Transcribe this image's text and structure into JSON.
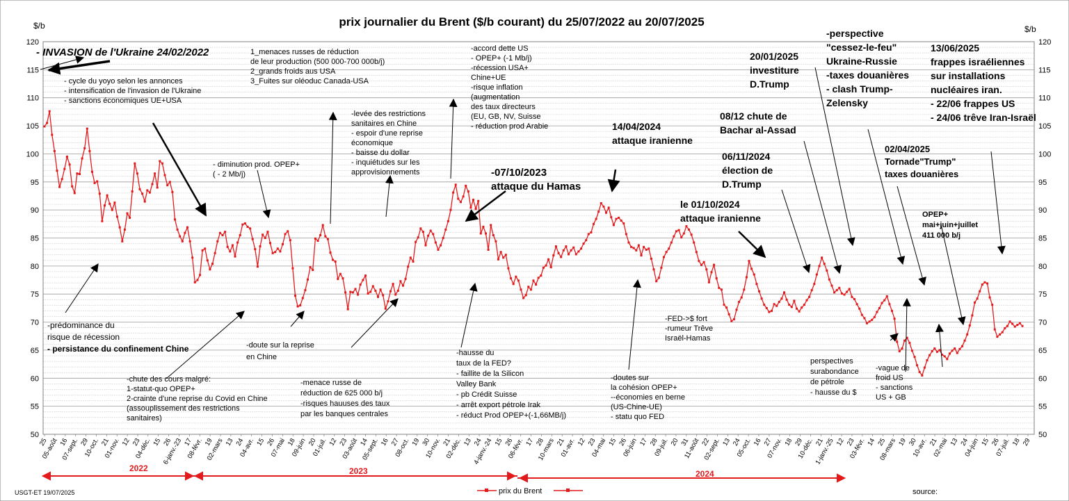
{
  "chart_data": {
    "type": "line",
    "title": "prix  journalier du  Brent ($/b courant) du 25/07/2022 au  20/07/2025",
    "ylabel_left": "$/b",
    "ylabel_right": "$/b",
    "ylim": [
      50,
      120
    ],
    "yticks": [
      50,
      55,
      60,
      65,
      70,
      75,
      80,
      85,
      90,
      95,
      100,
      105,
      110,
      115,
      120
    ],
    "grid": true,
    "x_tick_labels": [
      "25",
      "05-août",
      "16",
      "07-sept.",
      "29",
      "10-oct.",
      "21",
      "01-nov.",
      "12",
      "23",
      "04-déc.",
      "15",
      "26",
      "6-janv.-23",
      "17",
      "08-févr.",
      "19",
      "02-mars",
      "13",
      "24",
      "04-avr.",
      "15",
      "26",
      "07-mai",
      "18",
      "09-juin",
      "20",
      "01-juil.",
      "12",
      "23",
      "03-août",
      "14",
      "05-sept.",
      "16",
      "27",
      "08-oct.",
      "19",
      "30",
      "10-nov.",
      "21",
      "02-déc.",
      "13",
      "24",
      "4-janv.-24",
      "15",
      "26",
      "06-févr.",
      "17",
      "28",
      "10-mars",
      "21",
      "01-avr.",
      "12",
      "23",
      "04-mai",
      "15",
      "26",
      "06-juin",
      "17",
      "28",
      "09-juil.",
      "20",
      "31",
      "11-août",
      "22",
      "02-sept.",
      "13",
      "24",
      "05-oct.",
      "16",
      "27",
      "07-nov.",
      "18",
      "29",
      "10-déc.",
      "21",
      "1-janv.-25",
      "12",
      "23",
      "03-févr.",
      "14",
      "25",
      "08-mars",
      "19",
      "30",
      "10-avr.",
      "21",
      "02-mai",
      "13",
      "24",
      "04-juin",
      "15",
      "26",
      "07-juil.",
      "18",
      "29"
    ],
    "series": [
      {
        "name": "prix du Brent",
        "color": "#e31a1c",
        "values": [
          104.9,
          105.5,
          107.6,
          103.4,
          100.5,
          97,
          94.1,
          95.5,
          97.3,
          99.5,
          98.1,
          94.2,
          93,
          96.5,
          96.4,
          99.2,
          101,
          104.5,
          100.5,
          96.8,
          94.8,
          95.1,
          92.9,
          88,
          90.8,
          92.6,
          91.1,
          90,
          91.3,
          88.8,
          86.9,
          84.4,
          86.5,
          89.4,
          88.6,
          93.3,
          98.3,
          96.5,
          93.7,
          92.9,
          91.5,
          93.5,
          93.1,
          94.6,
          96.5,
          94,
          98.7,
          98.3,
          96.2,
          94.4,
          95,
          93.2,
          88.3,
          86.5,
          85.3,
          84.4,
          85.9,
          86.9,
          84.4,
          81.5,
          77.1,
          77.5,
          78.4,
          82.8,
          83.1,
          81,
          79.4,
          80.4,
          82.3,
          84.4,
          85.9,
          85.5,
          86.1,
          83.4,
          82.6,
          83.7,
          81.7,
          84.2,
          85.5,
          87.4,
          87.6,
          87,
          86.7,
          84.8,
          83,
          79.9,
          83.5,
          85.6,
          85,
          86.1,
          84.1,
          82.3,
          82.5,
          83.1,
          82.6,
          83.9,
          85.7,
          86.2,
          84.6,
          79.6,
          74.7,
          72.8,
          73,
          74.3,
          75.7,
          77.6,
          79.8,
          79.3,
          84.9,
          84.5,
          85.5,
          87.3,
          85.3,
          84.8,
          82.4,
          81.1,
          80.8,
          77.7,
          78.6,
          77.8,
          75.3,
          72.3,
          75.4,
          75.3,
          75.9,
          74.9,
          76.7,
          77.5,
          78.3,
          75.1,
          75.4,
          76.4,
          75.6,
          74.5,
          75.8,
          74.8,
          72.4,
          73.7,
          75.5,
          76.8,
          74.9,
          75.6,
          77.3,
          76.5,
          77.7,
          79.9,
          81.5,
          80.8,
          84.3,
          85.1,
          86.7,
          86.1,
          83.7,
          85.4,
          86.3,
          85.7,
          84.2,
          82.9,
          83.7,
          85,
          86.5,
          88,
          90,
          93.1,
          94.5,
          92,
          91.4,
          92.4,
          94.3,
          93.3,
          90.4,
          91.8,
          90.2,
          91.6,
          85.8,
          87,
          85.8,
          82.9,
          87.3,
          85.5,
          84.4,
          81.2,
          82.5,
          81.5,
          82,
          79.6,
          77.8,
          76.8,
          78.1,
          77.4,
          75.8,
          74.3,
          74.8,
          76.3,
          75.8,
          77.4,
          76.7,
          77.9,
          78.3,
          79.7,
          80.1,
          81.2,
          79.8,
          81.9,
          83.5,
          82.3,
          81.6,
          82.8,
          83.5,
          82.1,
          82.8,
          83.3,
          82.1,
          82.6,
          83.1,
          84,
          84.6,
          85.7,
          86,
          87.5,
          88.4,
          89.7,
          91.2,
          90.6,
          89.5,
          90.4,
          88.7,
          87.3,
          88.4,
          88.6,
          88.1,
          87.6,
          85.7,
          84.2,
          83.4,
          83.2,
          82.8,
          83.7,
          81.9,
          83.4,
          82.9,
          83.1,
          81.3,
          79.4,
          77.3,
          77.9,
          79.7,
          81.6,
          82.5,
          83.1,
          84.2,
          85.3,
          86.2,
          86.4,
          85.1,
          85.8,
          87.1,
          86.5,
          85.6,
          84.2,
          82.5,
          80.9,
          80.2,
          80.7,
          79.4,
          77.1,
          78.9,
          80.2,
          77.8,
          76.1,
          75.8,
          73.1,
          72.6,
          71.4,
          70.2,
          70.5,
          72.2,
          73.6,
          74.4,
          75.8,
          78,
          80.9,
          79.5,
          78.5,
          76.8,
          75.5,
          74.2,
          73.1,
          72.5,
          71.8,
          72,
          73.2,
          72.9,
          73.6,
          74.2,
          75.3,
          74,
          73.1,
          72.7,
          73.8,
          72.4,
          71.9,
          72.6,
          73.1,
          73.9,
          74.5,
          75.7,
          76.8,
          78.5,
          80,
          81.5,
          80.4,
          79.2,
          77.6,
          76.5,
          75.3,
          75.7,
          76.1,
          75.1,
          74.9,
          75.4,
          75.9,
          74.5,
          74.1,
          73.2,
          72.4,
          71.3,
          70.7,
          69.8,
          70.1,
          70.4,
          70.9,
          71.8,
          72.5,
          73.4,
          73.9,
          74.6,
          73.2,
          72,
          70.6,
          66.5,
          64.8,
          65.3,
          66.7,
          67.2,
          66.3,
          64.9,
          63.8,
          62.3,
          61.1,
          60.5,
          61.9,
          63.2,
          64.1,
          64.8,
          65.3,
          64.7,
          65,
          64.2,
          63.9,
          63.4,
          64.4,
          64.9,
          65.3,
          64.5,
          65.2,
          65.7,
          66.7,
          67.8,
          69.4,
          71.2,
          73.5,
          74.2,
          75.5,
          76.7,
          77.1,
          76.9,
          74.4,
          73.1,
          68.7,
          67.4,
          67.8,
          68.2,
          68.9,
          69.3,
          70.1,
          69.7,
          69.2,
          69.5,
          69.8,
          69.3
        ]
      }
    ],
    "legend": {
      "position": "bottom-center",
      "labels": [
        "prix du Brent",
        ""
      ]
    },
    "year_labels": [
      "2022",
      "2023",
      "2024"
    ],
    "footer_left": "USGT-ET  19/07/2025",
    "footer_right": "source:",
    "annotations": [
      {
        "id": "a01",
        "lines": [
          "- INVASION de l'Ukraine 24/02/2022"
        ],
        "style": "bi"
      },
      {
        "id": "a02",
        "lines": [
          "- cycle du yoyo selon les annonces",
          "- intensification de l'invasion de l'Ukraine",
          "- sanctions économiques UE+USA"
        ],
        "style": "n"
      },
      {
        "id": "a03",
        "lines": [
          "1_menaces russes de réduction",
          "de leur production (500 000-700  000b/j)",
          "2_grands froids aus USA",
          "3_Fuites sur oléoduc Canada-USA"
        ],
        "style": "n"
      },
      {
        "id": "a04",
        "lines": [
          "- diminution prod. OPEP+",
          "( - 2 Mb/j)"
        ],
        "style": "n"
      },
      {
        "id": "a05",
        "lines": [
          "-levée des restrictions",
          "sanitaires en Chine",
          "- espoir d'une reprise",
          "économique",
          "- baisse du dollar",
          "- inquiétudes sur  les",
          "approvisionnements"
        ],
        "style": "n"
      },
      {
        "id": "a06",
        "lines": [
          "-accord dette US",
          "- OPEP+ (-1 Mb/j)",
          "-récession  USA+",
          "Chine+UE",
          "-risque inflation",
          "(augmentation",
          "des taux directeurs",
          "(EU, GB, NV, Suisse",
          "- réduction prod Arabie"
        ],
        "style": "n"
      },
      {
        "id": "a07",
        "lines": [
          "-07/10/2023",
          "attaque  du Hamas"
        ],
        "style": "b"
      },
      {
        "id": "a08",
        "lines": [
          "14/04/2024",
          "attaque iranienne"
        ],
        "style": "b"
      },
      {
        "id": "a09",
        "lines": [
          "20/01/2025",
          "investiture",
          "D.Trump"
        ],
        "style": "b"
      },
      {
        "id": "a10",
        "lines": [
          "-perspective",
          "\"cessez-le-feu\"",
          "Ukraine-Russie",
          "-taxes douanières",
          "- clash Trump-",
          "Zelensky"
        ],
        "style": "b"
      },
      {
        "id": "a11",
        "lines": [
          "13/06/2025",
          "frappes  israéliennes",
          "sur installations",
          "nucléaires iran.",
          "- 22/06 frappes US",
          "- 24/06 trêve Iran-Israël"
        ],
        "style": "b"
      },
      {
        "id": "a12",
        "lines": [
          "08/12 chute de",
          "Bachar al-Assad"
        ],
        "style": "b"
      },
      {
        "id": "a13",
        "lines": [
          "06/11/2024",
          "élection de",
          "D.Trump"
        ],
        "style": "b"
      },
      {
        "id": "a14",
        "lines": [
          "02/04/2025",
          "Tornade\"Trump\"",
          "taxes douanières"
        ],
        "style": "b"
      },
      {
        "id": "a15",
        "lines": [
          "le 01/10/2024",
          "attaque iranienne"
        ],
        "style": "b"
      },
      {
        "id": "a16",
        "lines": [
          "OPEP+",
          "mai+juin+juillet",
          "411 000 b/j"
        ],
        "style": "b"
      },
      {
        "id": "a17",
        "lines": [
          "-prédominance du",
          "risque de récession",
          "- persistance du confinement Chine"
        ],
        "style": "n"
      },
      {
        "id": "a18",
        "lines": [
          "-chute des cours malgré:",
          "1-statut-quo OPEP+",
          "2-crainte d'une reprise du Covid en Chine",
          "(assouplissement des restrictions",
          "sanitaires)"
        ],
        "style": "n"
      },
      {
        "id": "a19",
        "lines": [
          "-doute sur la reprise",
          "en Chine"
        ],
        "style": "n"
      },
      {
        "id": "a20",
        "lines": [
          "-menace russe de",
          "réduction de 625 000  b/j",
          "-risques hauuses des taux",
          "par les banques centrales"
        ],
        "style": "n"
      },
      {
        "id": "a21",
        "lines": [
          "-hausse du",
          "taux de la FED?",
          "- faillite de la Silicon",
          "Valley Bank",
          "- pb Crédit Suisse",
          "- arrêt export pétrole Irak",
          "- réduct Prod OPEP+(-1,66MB/j)"
        ],
        "style": "n"
      },
      {
        "id": "a22",
        "lines": [
          "-doutes sur",
          "la cohésion  OPEP+",
          "--économies en berne",
          "(US-Chine-UE)",
          "- statu quo FED"
        ],
        "style": "n"
      },
      {
        "id": "a23",
        "lines": [
          "-FED->$ fort",
          "-rumeur Trêve",
          "Israël-Hamas"
        ],
        "style": "n"
      },
      {
        "id": "a24",
        "lines": [
          "perspectives",
          "surabondance",
          "de pétrole",
          "- hausse du $"
        ],
        "style": "n"
      },
      {
        "id": "a25",
        "lines": [
          "-vague de",
          "froid US",
          "- sanctions",
          "US + GB"
        ],
        "style": "n"
      }
    ]
  }
}
